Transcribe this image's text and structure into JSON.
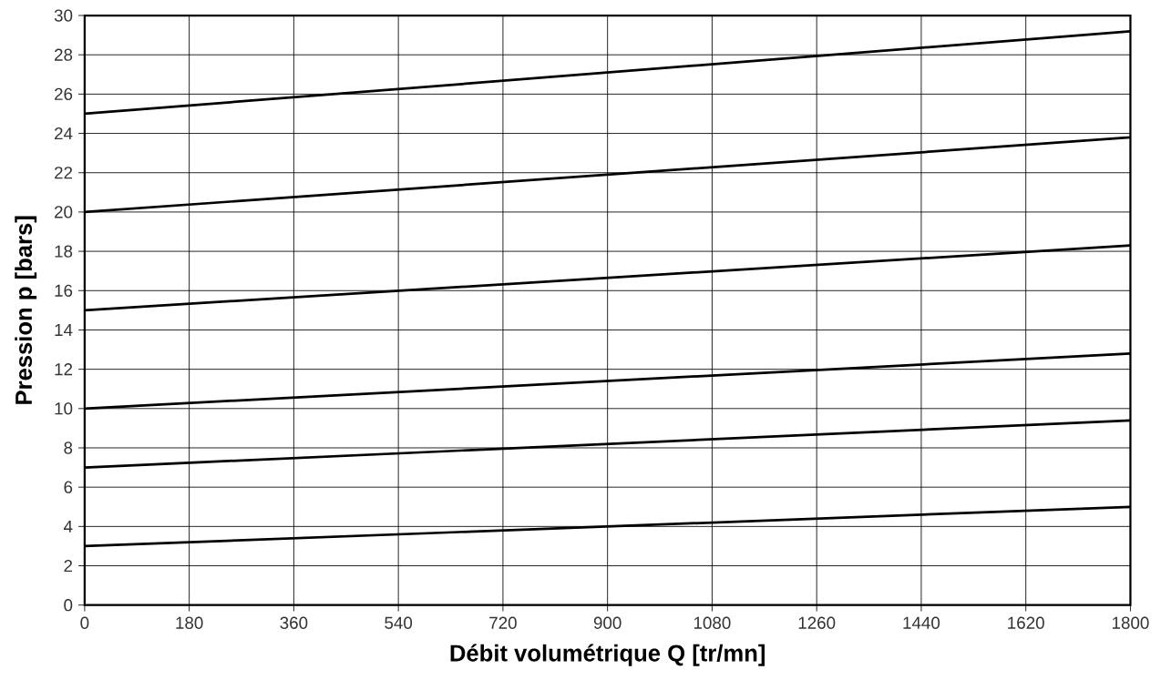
{
  "chart_data": {
    "type": "line",
    "xlabel": "Débit volumétrique Q [tr/mn]",
    "ylabel": "Pression p [bars]",
    "x": [
      0,
      1800
    ],
    "series": [
      {
        "color": "#000000",
        "values": [
          25,
          29.2
        ]
      },
      {
        "color": "#000000",
        "values": [
          20,
          23.8
        ]
      },
      {
        "color": "#000000",
        "values": [
          15,
          18.3
        ]
      },
      {
        "color": "#000000",
        "values": [
          10,
          12.8
        ]
      },
      {
        "color": "#000000",
        "values": [
          7,
          9.4
        ]
      },
      {
        "color": "#000000",
        "values": [
          3,
          5.0
        ]
      }
    ],
    "xlim": [
      0,
      1800
    ],
    "ylim": [
      0,
      30
    ],
    "xticks": [
      0,
      180,
      360,
      540,
      720,
      900,
      1080,
      1260,
      1440,
      1620,
      1800
    ],
    "yticks": [
      0,
      2,
      4,
      6,
      8,
      10,
      12,
      14,
      16,
      18,
      20,
      22,
      24,
      26,
      28,
      30
    ],
    "grid": true,
    "marker": "none",
    "line_style": "solid"
  }
}
